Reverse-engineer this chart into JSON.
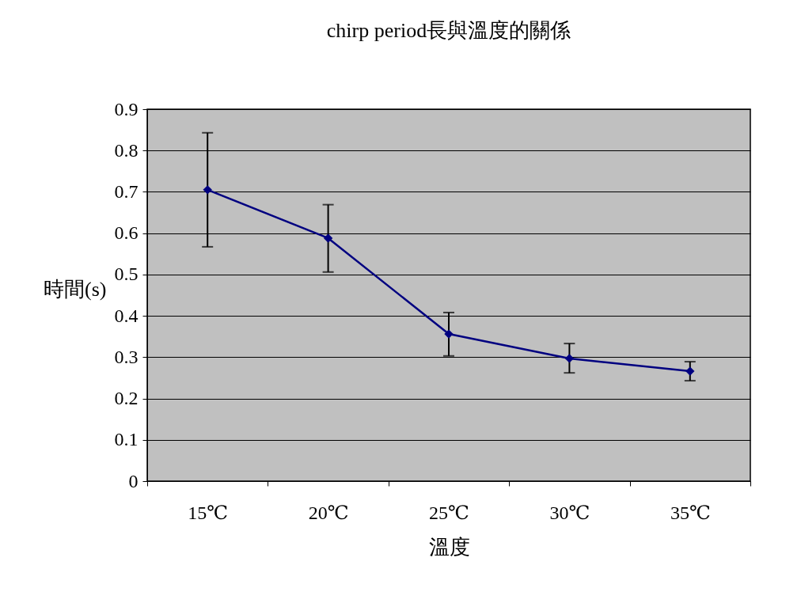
{
  "chart_data": {
    "type": "line",
    "title": "chirp period長與溫度的關係",
    "xlabel": "溫度",
    "ylabel": "時間(s)",
    "categories": [
      "15℃",
      "20℃",
      "25℃",
      "30℃",
      "35℃"
    ],
    "series": [
      {
        "color": "#000080",
        "values": [
          0.705,
          0.588,
          0.356,
          0.297,
          0.266
        ],
        "errors": [
          [
            0.567,
            0.843
          ],
          [
            0.506,
            0.669
          ],
          [
            0.303,
            0.408
          ],
          [
            0.262,
            0.333
          ],
          [
            0.243,
            0.289
          ]
        ]
      }
    ],
    "ylim": [
      0,
      0.9
    ],
    "yticks": [
      0,
      0.1,
      0.2,
      0.3,
      0.4,
      0.5,
      0.6,
      0.7,
      0.8,
      0.9
    ],
    "grid": "y",
    "marker": "diamond",
    "line_style": "solid"
  }
}
